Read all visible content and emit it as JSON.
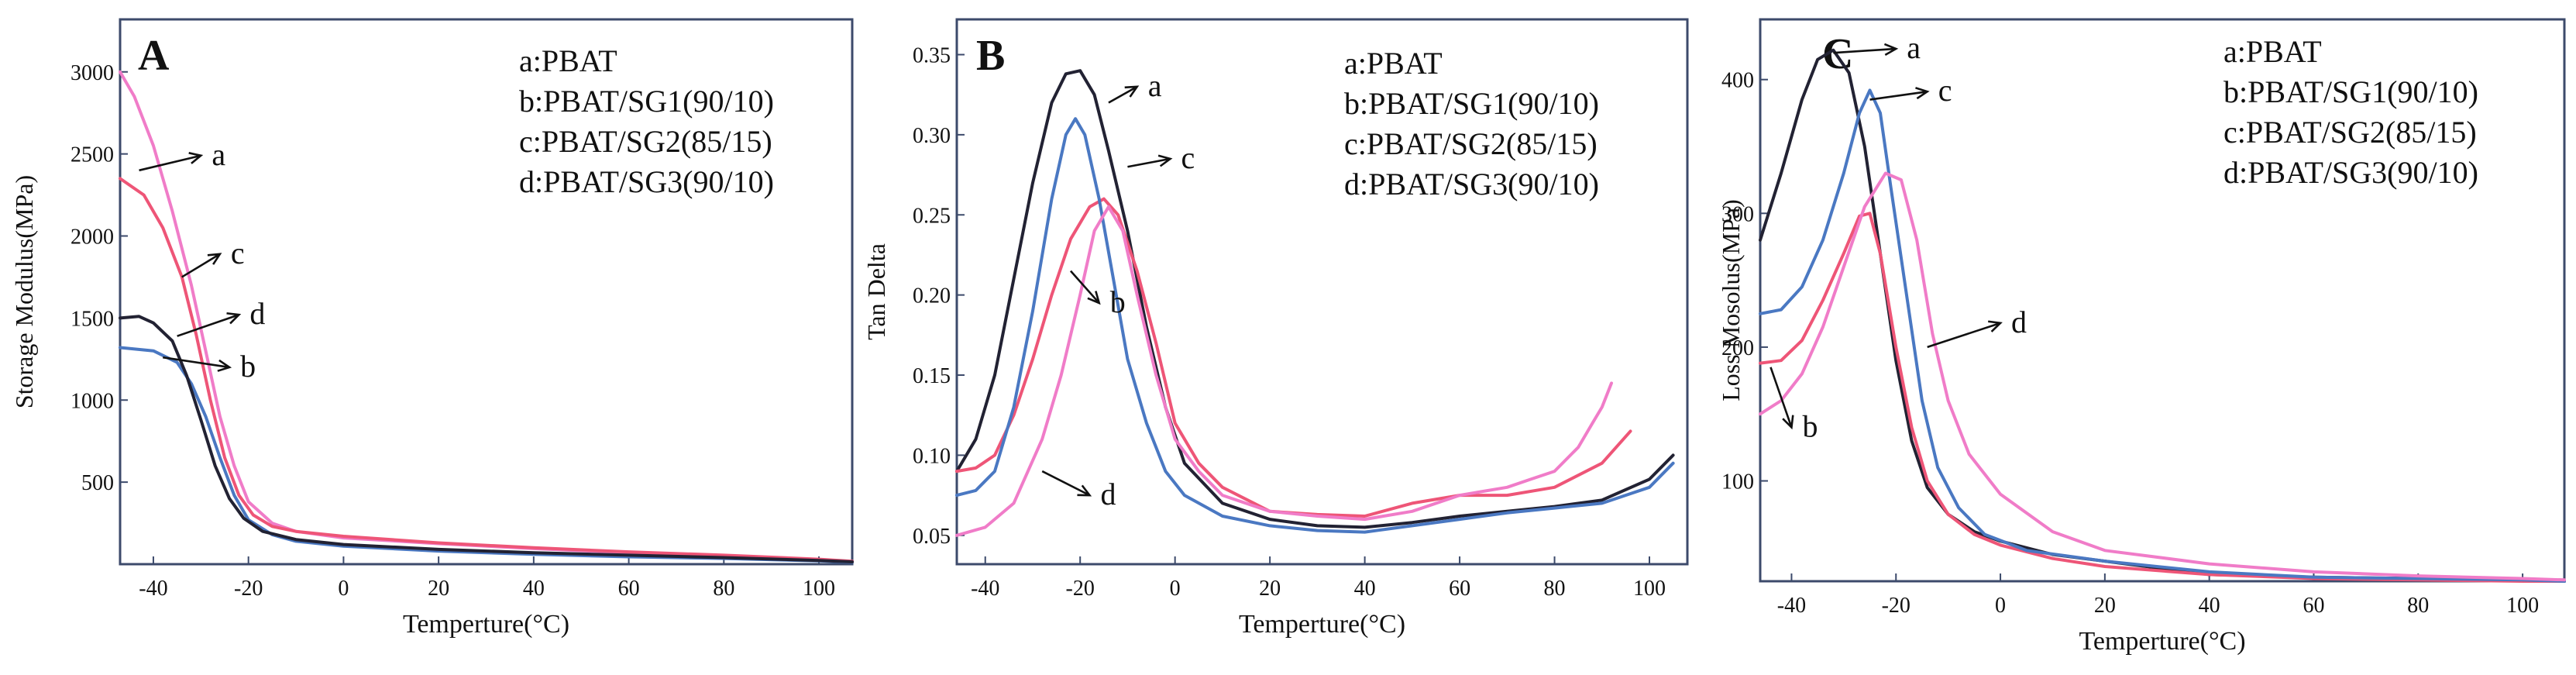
{
  "chart_data": [
    {
      "type": "line",
      "panel_label": "A",
      "title": "",
      "xlabel": "Temperture(°C)",
      "ylabel": "Storage Modulus(MPa)",
      "xlim": [
        -47,
        107
      ],
      "ylim": [
        0,
        3320
      ],
      "xticks": [
        -40,
        -20,
        0,
        20,
        40,
        60,
        80,
        100
      ],
      "xtick_labels": [
        "-40",
        "-20",
        "0",
        "20",
        "40",
        "60",
        "80",
        "100"
      ],
      "yticks": [
        500,
        1000,
        1500,
        2000,
        2500,
        3000
      ],
      "ytick_labels": [
        "500",
        "1000",
        "1500",
        "2000",
        "2500",
        "3000"
      ],
      "legend": [
        "a:PBAT",
        "b:PBAT/SG1(90/10)",
        "c:PBAT/SG2(85/15)",
        "d:PBAT/SG3(90/10)"
      ],
      "series": [
        {
          "name": "a",
          "color": "#f07cc8",
          "x": [
            -47,
            -44,
            -40,
            -36,
            -32,
            -29,
            -26,
            -23,
            -20,
            -15,
            -10,
            0,
            20,
            40,
            60,
            80,
            100,
            107
          ],
          "y": [
            3000,
            2850,
            2550,
            2150,
            1700,
            1300,
            900,
            600,
            380,
            250,
            200,
            160,
            125,
            95,
            70,
            50,
            25,
            15
          ]
        },
        {
          "name": "b",
          "color": "#4a78c2",
          "x": [
            -47,
            -40,
            -35,
            -32,
            -29,
            -26,
            -23,
            -20,
            -15,
            -10,
            0,
            20,
            40,
            60,
            80,
            100,
            107
          ],
          "y": [
            1320,
            1300,
            1230,
            1100,
            900,
            650,
            420,
            270,
            180,
            140,
            110,
            80,
            60,
            45,
            35,
            20,
            12
          ]
        },
        {
          "name": "c",
          "color": "#ee5577",
          "x": [
            -47,
            -42,
            -38,
            -34,
            -31,
            -28,
            -25,
            -22,
            -19,
            -15,
            -10,
            0,
            20,
            40,
            60,
            80,
            100,
            107
          ],
          "y": [
            2350,
            2250,
            2050,
            1750,
            1400,
            1000,
            650,
            420,
            300,
            230,
            200,
            170,
            130,
            100,
            75,
            55,
            30,
            18
          ]
        },
        {
          "name": "d",
          "color": "#222233",
          "x": [
            -47,
            -43,
            -40,
            -36,
            -33,
            -30,
            -27,
            -24,
            -21,
            -17,
            -10,
            0,
            20,
            40,
            60,
            80,
            100,
            107
          ],
          "y": [
            1500,
            1510,
            1470,
            1360,
            1150,
            880,
            600,
            400,
            280,
            200,
            150,
            120,
            90,
            70,
            55,
            40,
            22,
            14
          ]
        }
      ],
      "annotations": [
        {
          "text": "a",
          "x": -30,
          "y": 2490,
          "tx": -43,
          "ty": 2400
        },
        {
          "text": "c",
          "x": -26,
          "y": 1890,
          "tx": -34,
          "ty": 1750
        },
        {
          "text": "d",
          "x": -22,
          "y": 1520,
          "tx": -35,
          "ty": 1390
        },
        {
          "text": "b",
          "x": -24,
          "y": 1200,
          "tx": -38,
          "ty": 1260
        }
      ]
    },
    {
      "type": "line",
      "panel_label": "B",
      "title": "",
      "xlabel": "Temperture(°C)",
      "ylabel": "Tan Delta",
      "xlim": [
        -46,
        108
      ],
      "ylim": [
        0.032,
        0.372
      ],
      "xticks": [
        -40,
        -20,
        0,
        20,
        40,
        60,
        80,
        100
      ],
      "xtick_labels": [
        "-40",
        "-20",
        "0",
        "20",
        "40",
        "60",
        "80",
        "100"
      ],
      "yticks": [
        0.05,
        0.1,
        0.15,
        0.2,
        0.25,
        0.3,
        0.35
      ],
      "ytick_labels": [
        "0.05",
        "0.10",
        "0.15",
        "0.20",
        "0.25",
        "0.30",
        "0.35"
      ],
      "legend": [
        "a:PBAT",
        "b:PBAT/SG1(90/10)",
        "c:PBAT/SG2(85/15)",
        "d:PBAT/SG3(90/10)"
      ],
      "series": [
        {
          "name": "a",
          "color": "#222233",
          "x": [
            -46,
            -42,
            -38,
            -34,
            -30,
            -26,
            -23,
            -20,
            -17,
            -14,
            -10,
            -6,
            -2,
            2,
            10,
            20,
            30,
            40,
            50,
            60,
            70,
            80,
            90,
            100,
            105
          ],
          "y": [
            0.09,
            0.11,
            0.15,
            0.21,
            0.27,
            0.32,
            0.338,
            0.34,
            0.325,
            0.29,
            0.24,
            0.18,
            0.13,
            0.095,
            0.07,
            0.06,
            0.056,
            0.055,
            0.058,
            0.062,
            0.065,
            0.068,
            0.072,
            0.085,
            0.1
          ]
        },
        {
          "name": "b",
          "color": "#ee5577",
          "x": [
            -46,
            -42,
            -38,
            -34,
            -30,
            -26,
            -22,
            -18,
            -15,
            -12,
            -8,
            -4,
            0,
            5,
            10,
            20,
            30,
            40,
            50,
            60,
            70,
            80,
            90,
            96
          ],
          "y": [
            0.09,
            0.092,
            0.1,
            0.125,
            0.16,
            0.2,
            0.235,
            0.255,
            0.26,
            0.25,
            0.215,
            0.17,
            0.12,
            0.095,
            0.08,
            0.065,
            0.063,
            0.062,
            0.07,
            0.075,
            0.075,
            0.08,
            0.095,
            0.115
          ]
        },
        {
          "name": "c",
          "color": "#4a78c2",
          "x": [
            -46,
            -42,
            -38,
            -34,
            -30,
            -26,
            -23,
            -21,
            -19,
            -16,
            -13,
            -10,
            -6,
            -2,
            2,
            10,
            20,
            30,
            40,
            50,
            60,
            70,
            80,
            90,
            100,
            105
          ],
          "y": [
            0.075,
            0.078,
            0.09,
            0.13,
            0.19,
            0.26,
            0.3,
            0.31,
            0.3,
            0.26,
            0.21,
            0.16,
            0.12,
            0.09,
            0.075,
            0.062,
            0.056,
            0.053,
            0.052,
            0.056,
            0.06,
            0.064,
            0.067,
            0.07,
            0.08,
            0.095
          ]
        },
        {
          "name": "d",
          "color": "#f07cc8",
          "x": [
            -46,
            -40,
            -34,
            -28,
            -24,
            -20,
            -17,
            -14,
            -11,
            -8,
            -4,
            0,
            5,
            10,
            20,
            30,
            40,
            50,
            60,
            70,
            75,
            80,
            85,
            88,
            90,
            92
          ],
          "y": [
            0.05,
            0.055,
            0.07,
            0.11,
            0.15,
            0.2,
            0.24,
            0.255,
            0.24,
            0.2,
            0.15,
            0.11,
            0.09,
            0.075,
            0.065,
            0.062,
            0.06,
            0.065,
            0.075,
            0.08,
            0.085,
            0.09,
            0.105,
            0.12,
            0.13,
            0.145
          ]
        }
      ],
      "annotations": [
        {
          "text": "a",
          "x": -8,
          "y": 0.33,
          "tx": -14,
          "ty": 0.32
        },
        {
          "text": "c",
          "x": -1,
          "y": 0.285,
          "tx": -10,
          "ty": 0.28
        },
        {
          "text": "b",
          "x": -16,
          "y": 0.195,
          "tx": -22,
          "ty": 0.215
        },
        {
          "text": "d",
          "x": -18,
          "y": 0.075,
          "tx": -28,
          "ty": 0.09
        }
      ]
    },
    {
      "type": "line",
      "panel_label": "C",
      "title": "",
      "xlabel": "Temperture(°C)",
      "ylabel": "Loss Mosolus(MPa)",
      "xlim": [
        -46,
        108
      ],
      "ylim": [
        25,
        445
      ],
      "xticks": [
        -40,
        -20,
        0,
        20,
        40,
        60,
        80,
        100
      ],
      "xtick_labels": [
        "-40",
        "-20",
        "0",
        "20",
        "40",
        "60",
        "80",
        "100"
      ],
      "yticks": [
        100,
        200,
        300,
        400
      ],
      "ytick_labels": [
        "100",
        "200",
        "300",
        "400"
      ],
      "legend": [
        "a:PBAT",
        "b:PBAT/SG1(90/10)",
        "c:PBAT/SG2(85/15)",
        "d:PBAT/SG3(90/10)"
      ],
      "series": [
        {
          "name": "a",
          "color": "#222233",
          "x": [
            -46,
            -42,
            -38,
            -35,
            -32,
            -29,
            -26,
            -23,
            -20,
            -17,
            -14,
            -10,
            -5,
            0,
            10,
            20,
            40,
            60,
            80,
            100,
            108
          ],
          "y": [
            280,
            330,
            385,
            415,
            422,
            405,
            350,
            270,
            190,
            130,
            95,
            75,
            62,
            55,
            45,
            40,
            30,
            28,
            27,
            26,
            25
          ]
        },
        {
          "name": "b",
          "color": "#ee5577",
          "x": [
            -46,
            -42,
            -38,
            -34,
            -30,
            -27,
            -25,
            -23,
            -20,
            -17,
            -14,
            -10,
            -5,
            0,
            10,
            20,
            40,
            60,
            80,
            100,
            108
          ],
          "y": [
            188,
            190,
            205,
            235,
            270,
            298,
            300,
            270,
            200,
            140,
            100,
            75,
            60,
            52,
            42,
            36,
            30,
            27,
            26,
            25,
            25
          ]
        },
        {
          "name": "c",
          "color": "#4a78c2",
          "x": [
            -46,
            -42,
            -38,
            -34,
            -30,
            -27,
            -25,
            -23,
            -21,
            -18,
            -15,
            -12,
            -8,
            -3,
            5,
            20,
            40,
            60,
            80,
            100,
            108
          ],
          "y": [
            225,
            228,
            245,
            280,
            330,
            375,
            392,
            375,
            320,
            240,
            160,
            110,
            80,
            60,
            48,
            40,
            32,
            28,
            27,
            26,
            25
          ]
        },
        {
          "name": "d",
          "color": "#f07cc8",
          "x": [
            -46,
            -42,
            -38,
            -34,
            -30,
            -26,
            -22,
            -19,
            -16,
            -13,
            -10,
            -6,
            0,
            10,
            20,
            40,
            60,
            80,
            100,
            108
          ],
          "y": [
            150,
            160,
            180,
            215,
            260,
            305,
            330,
            325,
            280,
            210,
            160,
            120,
            90,
            62,
            48,
            38,
            32,
            29,
            27,
            26
          ]
        }
      ],
      "annotations": [
        {
          "text": "a",
          "x": -20,
          "y": 423,
          "tx": -32,
          "ty": 420
        },
        {
          "text": "c",
          "x": -14,
          "y": 391,
          "tx": -25,
          "ty": 385
        },
        {
          "text": "d",
          "x": 0,
          "y": 218,
          "tx": -14,
          "ty": 200
        },
        {
          "text": "b",
          "x": -40,
          "y": 140,
          "tx": -44,
          "ty": 185
        }
      ]
    }
  ]
}
